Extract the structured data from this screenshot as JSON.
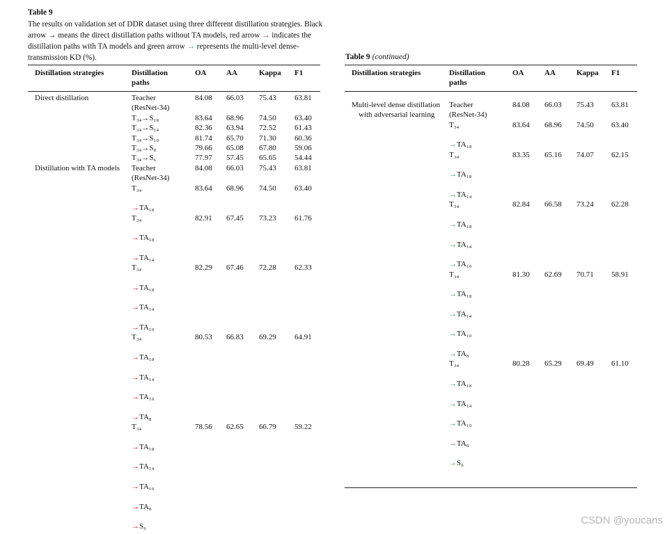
{
  "title": "Table 9",
  "caption": [
    "The results on validation set of DDR dataset using three different distillation strategies. Black arrow ",
    {
      "text": "→",
      "color": "#000000"
    },
    " means the direct distillation paths without TA models, red arrow ",
    {
      "text": "→",
      "color": "#e01010"
    },
    " indicates the distillation paths with TA models and green arrow ",
    {
      "text": "→",
      "color": "#19a03a"
    },
    " represents the multi-level dense-transmission KD (%)."
  ],
  "tables": [
    {
      "headers": [
        "Distillation strategies",
        "Distillation paths",
        "OA",
        "AA",
        "Kappa",
        "F1"
      ],
      "arrow_color": "#e01010",
      "rows": [
        {
          "strategy": "Direct distillation",
          "path": [
            "Teacher",
            "(ResNet-34)"
          ],
          "values": [
            "84.08",
            "66.03",
            "75.43",
            "63.81"
          ]
        },
        {
          "path": [
            "T₃₄→S₁₈"
          ],
          "values": [
            "83.64",
            "68.96",
            "74.50",
            "63.40"
          ]
        },
        {
          "path": [
            "T₃₄→S₁₄"
          ],
          "values": [
            "82.36",
            "63.94",
            "72.52",
            "61.43"
          ]
        },
        {
          "path": [
            "T₃₄→S₁₀"
          ],
          "values": [
            "81.74",
            "65.70",
            "71.30",
            "60.36"
          ]
        },
        {
          "path": [
            "T₃₄→S₈"
          ],
          "values": [
            "79.66",
            "65.08",
            "67.80",
            "59.06"
          ]
        },
        {
          "path": [
            "T₃₄→S₆"
          ],
          "values": [
            "77.97",
            "57.45",
            "65.65",
            "54.44"
          ]
        },
        {
          "strategy": "Distillation with TA models",
          "path": [
            "Teacher",
            "(ResNet-34)"
          ],
          "values": [
            "84.08",
            "66.03",
            "75.43",
            "63.81"
          ]
        },
        {
          "path": [
            "T₃₄",
            {
              "arrow": "→",
              "to": "TA₁₈"
            }
          ],
          "values": [
            "83.64",
            "68.96",
            "74.50",
            "63.40"
          ]
        },
        {
          "path": [
            "T₃₄",
            {
              "arrow": "→",
              "to": "TA₁₈"
            },
            {
              "arrow": "→",
              "to": "TA₁₄"
            }
          ],
          "values": [
            "82.91",
            "67.45",
            "73.23",
            "61.76"
          ]
        },
        {
          "path": [
            "T₃₄",
            {
              "arrow": "→",
              "to": "TA₁₈"
            },
            {
              "arrow": "→",
              "to": "TA₁₄"
            },
            {
              "arrow": "→",
              "to": "TA₁₀"
            }
          ],
          "values": [
            "82.29",
            "67.46",
            "72.28",
            "62.33"
          ]
        },
        {
          "path": [
            "T₃₄",
            {
              "arrow": "→",
              "to": "TA₁₈"
            },
            {
              "arrow": "→",
              "to": "TA₁₄"
            },
            {
              "arrow": "→",
              "to": "TA₁₀"
            },
            {
              "arrow": "→",
              "to": "TA₈"
            }
          ],
          "values": [
            "80.53",
            "66.83",
            "69.29",
            "64.91"
          ]
        },
        {
          "path": [
            "T₃₄",
            {
              "arrow": "→",
              "to": "TA₁₈"
            },
            {
              "arrow": "→",
              "to": "TA₁₄"
            },
            {
              "arrow": "→",
              "to": "TA₁₀"
            },
            {
              "arrow": "→",
              "to": "TA₈"
            },
            {
              "arrow": "→",
              "to": "S₆"
            }
          ],
          "values": [
            "78.56",
            "62.65",
            "66.79",
            "59.22"
          ]
        }
      ]
    },
    {
      "title": "Table 9",
      "title_note": "(continued)",
      "headers": [
        "Distillation strategies",
        "Distillation paths",
        "OA",
        "AA",
        "Kappa",
        "F1"
      ],
      "arrow_color": "#19a03a",
      "rows": [
        {
          "strategy": "Multi-level dense distillation with adversarial learning",
          "path": [
            "Teacher",
            "(ResNet-34)"
          ],
          "values": [
            "84.08",
            "66.03",
            "75.43",
            "63.81"
          ]
        },
        {
          "path": [
            "T₃₄",
            {
              "arrow": "→",
              "to": "TA₁₈"
            }
          ],
          "values": [
            "83.64",
            "68.96",
            "74.50",
            "63.40"
          ]
        },
        {
          "path": [
            "T₃₄",
            {
              "arrow": "→",
              "to": "TA₁₈"
            },
            {
              "arrow": "→",
              "to": "TA₁₄"
            }
          ],
          "values": [
            "83.35",
            "65.16",
            "74.07",
            "62.15"
          ]
        },
        {
          "path": [
            "T₃₄",
            {
              "arrow": "→",
              "to": "TA₁₈"
            },
            {
              "arrow": "→",
              "to": "TA₁₄"
            },
            {
              "arrow": "→",
              "to": "TA₁₀"
            }
          ],
          "values": [
            "82.84",
            "66.58",
            "73.24",
            "62.28"
          ]
        },
        {
          "path": [
            "T₃₄",
            {
              "arrow": "→",
              "to": "TA₁₈"
            },
            {
              "arrow": "→",
              "to": "TA₁₄"
            },
            {
              "arrow": "→",
              "to": "TA₁₀"
            },
            {
              "arrow": "→",
              "to": "TA₈"
            }
          ],
          "values": [
            "81.30",
            "62.69",
            "70.71",
            "58.91"
          ]
        },
        {
          "path": [
            "T₃₄",
            {
              "arrow": "→",
              "to": "TA₁₈"
            },
            {
              "arrow": "→",
              "to": "TA₁₄"
            },
            {
              "arrow": "→",
              "to": "TA₁₀"
            },
            {
              "arrow": "→",
              "to": "TA₈"
            },
            {
              "arrow": "→",
              "to": "S₆"
            }
          ],
          "values": [
            "80.28",
            "65.29",
            "69.49",
            "61.10"
          ]
        }
      ]
    }
  ],
  "watermark": "CSDN @youcans"
}
